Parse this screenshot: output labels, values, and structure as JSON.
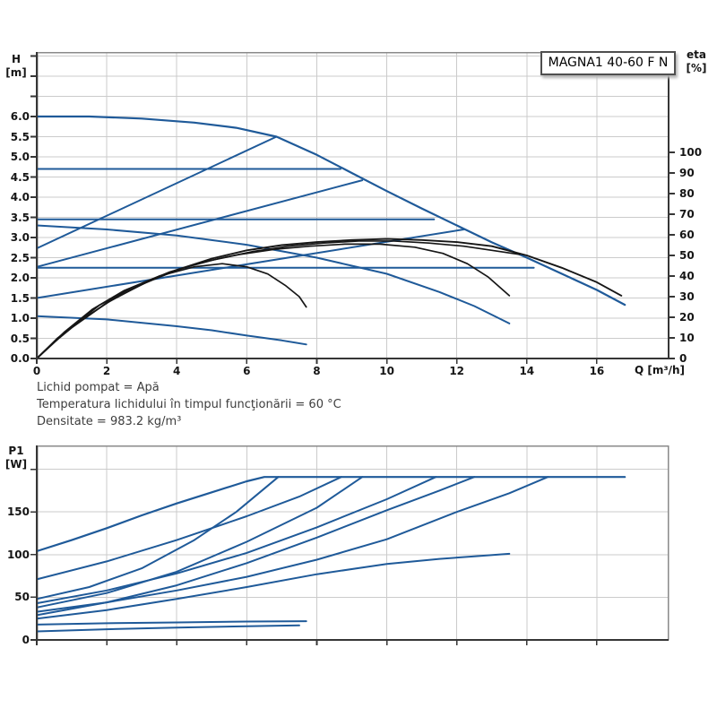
{
  "colors": {
    "curve_blue": "#1f5a99",
    "curve_black": "#161616",
    "grid": "#cbcbcb",
    "frame": "#8a8a8a",
    "axis": "#363636",
    "tick_text": "#151515",
    "info_text": "#3d3d3d"
  },
  "info_lines": [
    "Lichid pompat = Apă",
    "Temperatura lichidului în timpul funcţionării = 60 °C",
    "Densitate = 983.2 kg/m³"
  ],
  "chart_data": [
    {
      "type": "line",
      "title": "MAGNA1 40-60 F N",
      "x": {
        "label": "Q [m³/h]",
        "range": [
          0,
          18.05
        ],
        "grid_step": 2,
        "tick_step": 2,
        "tick_mark_max": 16,
        "tick_labels": [
          [
            "0",
            0
          ],
          [
            "2",
            2
          ],
          [
            "4",
            4
          ],
          [
            "6",
            6
          ],
          [
            "8",
            8
          ],
          [
            "10",
            10
          ],
          [
            "12",
            12
          ],
          [
            "14",
            14
          ],
          [
            "16",
            16
          ]
        ]
      },
      "y_left": {
        "name": "H",
        "label_lines": [
          "H",
          "[m]"
        ],
        "range": [
          0,
          7.6
        ],
        "grid_step": 0.5,
        "tick_step": 0.5,
        "tick_mark_max": 7.5,
        "tick_labels": [
          [
            "0.0",
            0
          ],
          [
            "0.5",
            0.5
          ],
          [
            "1.0",
            1
          ],
          [
            "1.5",
            1.5
          ],
          [
            "2.0",
            2
          ],
          [
            "2.5",
            2.5
          ],
          [
            "3.0",
            3
          ],
          [
            "3.5",
            3.5
          ],
          [
            "4.0",
            4
          ],
          [
            "4.5",
            4.5
          ],
          [
            "5.0",
            5
          ],
          [
            "5.5",
            5.5
          ],
          [
            "6.0",
            6
          ]
        ]
      },
      "y_right": {
        "name": "eta",
        "label_lines": [
          "eta",
          "[%]"
        ],
        "range": [
          0,
          148.7
        ],
        "tick_step": 10,
        "tick_mark_max": 100,
        "tick_labels": [
          [
            "0",
            0
          ],
          [
            "10",
            10
          ],
          [
            "20",
            20
          ],
          [
            "30",
            30
          ],
          [
            "40",
            40
          ],
          [
            "50",
            50
          ],
          [
            "60",
            60
          ],
          [
            "70",
            70
          ],
          [
            "80",
            80
          ],
          [
            "90",
            90
          ],
          [
            "100",
            100
          ]
        ]
      },
      "series": [
        {
          "name": "max-curve",
          "color": "blue",
          "axis": "H",
          "w": 2.2,
          "points": [
            [
              0,
              6.0
            ],
            [
              1.5,
              6.0
            ],
            [
              3,
              5.95
            ],
            [
              4.5,
              5.85
            ],
            [
              5.7,
              5.72
            ],
            [
              6.85,
              5.5
            ],
            [
              8,
              5.05
            ],
            [
              9,
              4.6
            ],
            [
              10,
              4.15
            ],
            [
              11,
              3.72
            ],
            [
              12,
              3.3
            ],
            [
              13,
              2.88
            ],
            [
              14,
              2.5
            ],
            [
              15,
              2.1
            ],
            [
              16,
              1.7
            ],
            [
              16.8,
              1.33
            ]
          ]
        },
        {
          "name": "const-pressure-3",
          "color": "blue",
          "axis": "H",
          "w": 2,
          "points": [
            [
              0,
              4.7
            ],
            [
              8.68,
              4.7
            ]
          ]
        },
        {
          "name": "const-pressure-2",
          "color": "blue",
          "axis": "H",
          "w": 2,
          "points": [
            [
              0,
              3.45
            ],
            [
              11.35,
              3.45
            ]
          ]
        },
        {
          "name": "const-pressure-1",
          "color": "blue",
          "axis": "H",
          "w": 2,
          "points": [
            [
              0,
              2.25
            ],
            [
              14.2,
              2.25
            ]
          ]
        },
        {
          "name": "prop-pressure-3",
          "color": "blue",
          "axis": "H",
          "w": 2,
          "points": [
            [
              0,
              2.73
            ],
            [
              6.85,
              5.5
            ]
          ]
        },
        {
          "name": "prop-pressure-2",
          "color": "blue",
          "axis": "H",
          "w": 2,
          "points": [
            [
              0,
              2.27
            ],
            [
              9.3,
              4.42
            ]
          ]
        },
        {
          "name": "prop-pressure-1",
          "color": "blue",
          "axis": "H",
          "w": 2,
          "points": [
            [
              0,
              1.5
            ],
            [
              12.2,
              3.2
            ]
          ]
        },
        {
          "name": "const-curve-2",
          "color": "blue",
          "axis": "H",
          "w": 2,
          "points": [
            [
              0,
              3.3
            ],
            [
              2,
              3.2
            ],
            [
              4,
              3.05
            ],
            [
              6,
              2.82
            ],
            [
              8,
              2.5
            ],
            [
              9,
              2.3
            ],
            [
              10,
              2.1
            ],
            [
              11.5,
              1.65
            ],
            [
              12.5,
              1.3
            ],
            [
              13.5,
              0.87
            ]
          ]
        },
        {
          "name": "min-curve",
          "color": "blue",
          "axis": "H",
          "w": 2,
          "points": [
            [
              0,
              1.05
            ],
            [
              2,
              0.97
            ],
            [
              4,
              0.8
            ],
            [
              5,
              0.7
            ],
            [
              6,
              0.57
            ],
            [
              7,
              0.45
            ],
            [
              7.7,
              0.35
            ]
          ]
        },
        {
          "name": "eta-max",
          "color": "black",
          "axis": "eta",
          "w": 1.9,
          "points": [
            [
              0,
              0
            ],
            [
              0.5,
              8
            ],
            [
              1,
              15
            ],
            [
              2,
              27
            ],
            [
              3,
              36
            ],
            [
              4,
              43
            ],
            [
              5,
              48.5
            ],
            [
              6,
              52.5
            ],
            [
              7,
              55
            ],
            [
              8,
              56.5
            ],
            [
              9,
              57.5
            ],
            [
              10,
              58
            ],
            [
              11,
              57.5
            ],
            [
              12,
              56.5
            ],
            [
              13,
              54.5
            ],
            [
              14,
              50
            ],
            [
              15,
              44
            ],
            [
              16,
              37
            ],
            [
              16.7,
              30.5
            ]
          ]
        },
        {
          "name": "eta-bundle",
          "color": "black",
          "axis": "eta",
          "w": 1.6,
          "points": [
            [
              0,
              0
            ],
            [
              0.6,
              10
            ],
            [
              1.3,
              19
            ],
            [
              2.2,
              29
            ],
            [
              3.2,
              37.5
            ],
            [
              4.2,
              44
            ],
            [
              5.2,
              48.5
            ],
            [
              6.2,
              52
            ],
            [
              7.2,
              54.5
            ],
            [
              8.2,
              56
            ],
            [
              9.2,
              57
            ],
            [
              10.2,
              57
            ],
            [
              11.2,
              56
            ],
            [
              12.2,
              54.5
            ],
            [
              13,
              52.5
            ],
            [
              13.8,
              50.5
            ]
          ]
        },
        {
          "name": "eta-curve-2",
          "color": "black",
          "axis": "eta",
          "w": 1.7,
          "points": [
            [
              0,
              0
            ],
            [
              0.9,
              14
            ],
            [
              1.8,
              26
            ],
            [
              2.8,
              35
            ],
            [
              3.8,
              42
            ],
            [
              4.8,
              47
            ],
            [
              5.8,
              50.5
            ],
            [
              6.8,
              53
            ],
            [
              7.8,
              54.5
            ],
            [
              8.8,
              55.5
            ],
            [
              9.8,
              55.5
            ],
            [
              10.8,
              54
            ],
            [
              11.6,
              51
            ],
            [
              12.3,
              46
            ],
            [
              12.9,
              39.5
            ],
            [
              13.5,
              30.5
            ]
          ]
        },
        {
          "name": "eta-min",
          "color": "black",
          "axis": "eta",
          "w": 1.7,
          "points": [
            [
              0,
              0
            ],
            [
              0.8,
              13
            ],
            [
              1.6,
              24
            ],
            [
              2.5,
              33
            ],
            [
              3.5,
              40
            ],
            [
              4.5,
              44.5
            ],
            [
              5.3,
              46
            ],
            [
              6,
              44.5
            ],
            [
              6.6,
              41
            ],
            [
              7.1,
              35.5
            ],
            [
              7.5,
              30
            ],
            [
              7.7,
              25
            ]
          ]
        }
      ]
    },
    {
      "type": "line",
      "title": "",
      "x": {
        "label": "",
        "range": [
          0,
          18.05
        ],
        "grid_step": 2,
        "tick_step": 2,
        "tick_mark_max": 16,
        "tick_labels": []
      },
      "y_left": {
        "name": "P",
        "label_lines": [
          "P1",
          "[W]"
        ],
        "range": [
          0,
          228
        ],
        "grid_step": 50,
        "tick_step": 50,
        "tick_mark_max": 200,
        "tick_labels": [
          [
            "0",
            0
          ],
          [
            "50",
            50
          ],
          [
            "100",
            100
          ],
          [
            "150",
            150
          ]
        ]
      },
      "series": [
        {
          "name": "power-max",
          "color": "blue",
          "axis": "P",
          "w": 2.2,
          "points": [
            [
              0,
              104
            ],
            [
              1,
              117
            ],
            [
              2,
              131
            ],
            [
              3,
              146
            ],
            [
              4,
              160
            ],
            [
              5,
              173
            ],
            [
              6,
              186
            ],
            [
              6.5,
              191
            ],
            [
              16.8,
              191
            ]
          ]
        },
        {
          "name": "power-const-pressure-3",
          "color": "blue",
          "axis": "P",
          "w": 2,
          "points": [
            [
              0,
              71
            ],
            [
              2,
              92
            ],
            [
              4,
              117
            ],
            [
              6,
              145
            ],
            [
              7.5,
              168
            ],
            [
              8.7,
              191
            ]
          ]
        },
        {
          "name": "power-prop-pressure-3",
          "color": "blue",
          "axis": "P",
          "w": 2,
          "points": [
            [
              0,
              48
            ],
            [
              1.5,
              62
            ],
            [
              3,
              84
            ],
            [
              4.5,
              117
            ],
            [
              5.7,
              150
            ],
            [
              6.9,
              191
            ]
          ]
        },
        {
          "name": "power-const-pressure-2",
          "color": "blue",
          "axis": "P",
          "w": 2,
          "points": [
            [
              0,
              43
            ],
            [
              2,
              58
            ],
            [
              4,
              78
            ],
            [
              6,
              102
            ],
            [
              8,
              132
            ],
            [
              10,
              165
            ],
            [
              11.4,
              191
            ]
          ]
        },
        {
          "name": "power-prop-pressure-2",
          "color": "blue",
          "axis": "P",
          "w": 2,
          "points": [
            [
              0,
              38
            ],
            [
              2,
              55
            ],
            [
              4,
              80
            ],
            [
              6,
              115
            ],
            [
              8,
              155
            ],
            [
              9.3,
              191
            ]
          ]
        },
        {
          "name": "power-const-pressure-1",
          "color": "blue",
          "axis": "P",
          "w": 2,
          "points": [
            [
              0,
              33
            ],
            [
              2,
              44
            ],
            [
              4,
              58
            ],
            [
              6,
              74
            ],
            [
              8,
              94
            ],
            [
              10,
              118
            ],
            [
              12,
              150
            ],
            [
              13.5,
              172
            ],
            [
              14.6,
              191
            ]
          ]
        },
        {
          "name": "power-prop-pressure-1",
          "color": "blue",
          "axis": "P",
          "w": 2,
          "points": [
            [
              0,
              29
            ],
            [
              2,
              44
            ],
            [
              4,
              64
            ],
            [
              6,
              90
            ],
            [
              8,
              120
            ],
            [
              10,
              152
            ],
            [
              11.5,
              175
            ],
            [
              12.5,
              191
            ]
          ]
        },
        {
          "name": "power-const-curve-2",
          "color": "blue",
          "axis": "P",
          "w": 2,
          "points": [
            [
              0,
              25
            ],
            [
              2,
              35
            ],
            [
              4,
              48
            ],
            [
              6,
              62
            ],
            [
              8,
              77
            ],
            [
              10,
              89
            ],
            [
              11.5,
              95
            ],
            [
              12.5,
              98
            ],
            [
              13.5,
              101
            ]
          ]
        },
        {
          "name": "power-min-upper",
          "color": "blue",
          "axis": "P",
          "w": 2,
          "points": [
            [
              0,
              18
            ],
            [
              2,
              19.5
            ],
            [
              4,
              20.5
            ],
            [
              6,
              21.5
            ],
            [
              7.7,
              22
            ]
          ]
        },
        {
          "name": "power-min-lower",
          "color": "blue",
          "axis": "P",
          "w": 2,
          "points": [
            [
              0,
              10
            ],
            [
              2,
              12.5
            ],
            [
              4,
              14.5
            ],
            [
              6,
              16
            ],
            [
              7.5,
              17
            ]
          ]
        }
      ]
    }
  ]
}
